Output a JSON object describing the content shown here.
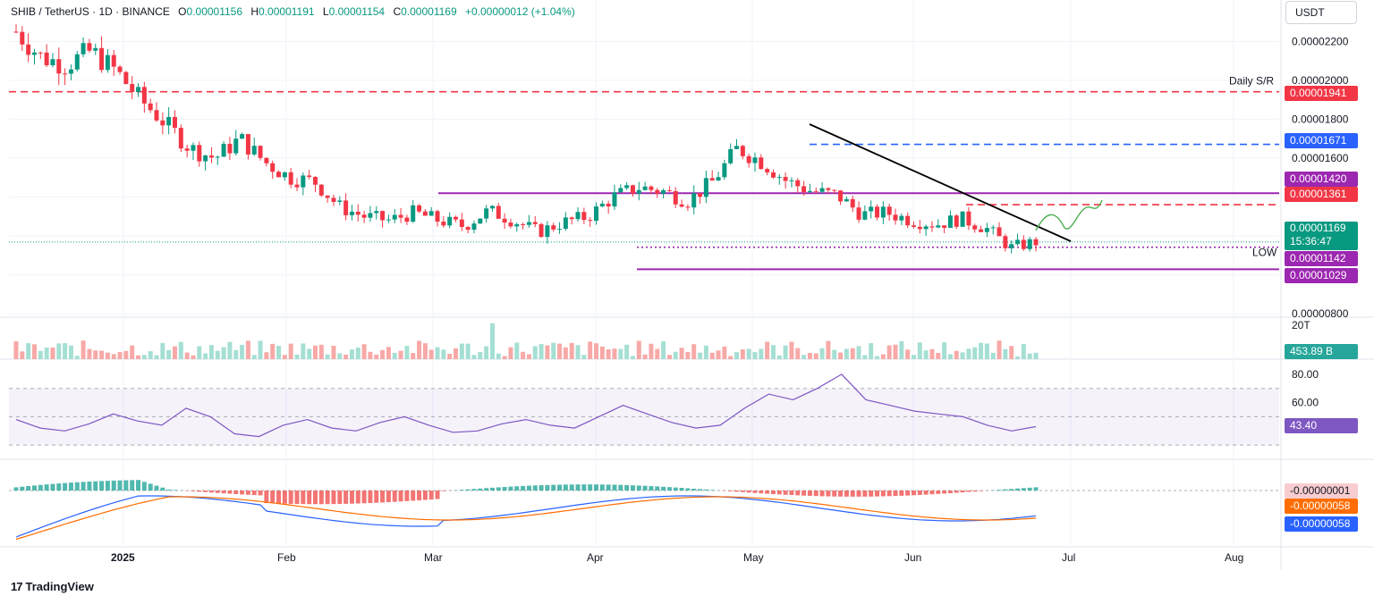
{
  "header": {
    "symbol": "SHIB / TetherUS · 1D · BINANCE",
    "open_label": "O",
    "open": "0.00001156",
    "high_label": "H",
    "high": "0.00001191",
    "low_label": "L",
    "low": "0.00001154",
    "close_label": "C",
    "close": "0.00001169",
    "change": "+0.00000012 (+1.04%)"
  },
  "currency": "USDT",
  "branding": "TradingView",
  "colors": {
    "up": "#089981",
    "down": "#f23645",
    "purple": "#9c27b0",
    "blue": "#2962ff",
    "orange": "#ff6d00",
    "rsi": "#7e57c2",
    "green_path": "#4caf50"
  },
  "annotations": {
    "daily_sr": "Daily S/R",
    "low": "LOW"
  },
  "price_tags": [
    {
      "text": "0.00001941",
      "color": "#f23645"
    },
    {
      "text": "0.00001671",
      "color": "#2962ff"
    },
    {
      "text": "0.00001420",
      "color": "#9c27b0"
    },
    {
      "text": "0.00001361",
      "color": "#f23645"
    },
    {
      "text": "0.00001169",
      "sub": "15:36:47",
      "color": "#089981"
    },
    {
      "text": "0.00001142",
      "color": "#9c27b0"
    },
    {
      "text": "0.00001029",
      "color": "#9c27b0"
    }
  ],
  "volume_tag": {
    "text": "453.89 B",
    "color": "#26a69a"
  },
  "rsi_tag": {
    "text": "43.40",
    "color": "#7e57c2"
  },
  "macd_tags": [
    {
      "text": "-0.00000001",
      "color": "#f8cdd0",
      "fg": "#131722"
    },
    {
      "text": "-0.00000058",
      "color": "#ff6d00",
      "fg": "#ffffff"
    },
    {
      "text": "-0.00000058",
      "color": "#2962ff",
      "fg": "#ffffff"
    }
  ],
  "chart_data": [
    {
      "type": "candlestick",
      "title": "SHIB / TetherUS · 1D · BINANCE",
      "y_ticks": [
        "0.00002200",
        "0.00002000",
        "0.00001800",
        "0.00001600",
        "0.00001400",
        "0.00001200",
        "0.00000800"
      ],
      "x_ticks": [
        "2025",
        "Feb",
        "Mar",
        "Apr",
        "May",
        "Jun",
        "Jul",
        "Aug"
      ],
      "levels": [
        {
          "name": "Daily S/R",
          "value": 1.941e-05,
          "style": "dashed",
          "color": "#f23645"
        },
        {
          "value": 1.671e-05,
          "style": "dashed",
          "color": "#2962ff"
        },
        {
          "value": 1.42e-05,
          "style": "solid",
          "color": "#9c27b0"
        },
        {
          "value": 1.361e-05,
          "style": "dashed",
          "color": "#f23645"
        },
        {
          "name": "LOW",
          "value": 1.142e-05,
          "style": "dotted",
          "color": "#9c27b0"
        },
        {
          "value": 1.029e-05,
          "style": "solid",
          "color": "#9c27b0"
        }
      ],
      "last_close": 1.169e-05,
      "close_series": [
        2.25e-05,
        2.12e-05,
        2.08e-05,
        2.15e-05,
        2.05e-05,
        1.9e-05,
        1.78e-05,
        1.65e-05,
        1.6e-05,
        1.7e-05,
        1.58e-05,
        1.5e-05,
        1.48e-05,
        1.35e-05,
        1.3e-05,
        1.28e-05,
        1.32e-05,
        1.28e-05,
        1.25e-05,
        1.33e-05,
        1.28e-05,
        1.22e-05,
        1.27e-05,
        1.3e-05,
        1.4e-05,
        1.45e-05,
        1.43e-05,
        1.38e-05,
        1.48e-05,
        1.65e-05,
        1.58e-05,
        1.48e-05,
        1.43e-05,
        1.41e-05,
        1.31e-05,
        1.32e-05,
        1.28e-05,
        1.26e-05,
        1.29e-05,
        1.24e-05,
        1.14e-05,
        1.17e-05
      ]
    },
    {
      "type": "bar",
      "title": "Volume",
      "y_ticks": [
        "20T"
      ],
      "last_value": "453.89 B"
    },
    {
      "type": "line",
      "title": "RSI",
      "y_ticks": [
        "80.00",
        "60.00"
      ],
      "bands": [
        30,
        50,
        70
      ],
      "last_value": 43.4,
      "values": [
        48,
        42,
        40,
        45,
        52,
        47,
        44,
        56,
        50,
        38,
        36,
        44,
        48,
        42,
        40,
        46,
        50,
        44,
        39,
        40,
        45,
        48,
        44,
        42,
        50,
        58,
        52,
        46,
        42,
        44,
        56,
        66,
        62,
        70,
        80,
        62,
        58,
        54,
        52,
        50,
        44,
        40,
        43
      ]
    },
    {
      "type": "line",
      "title": "MACD",
      "last_values": {
        "histogram": "-0.00000001",
        "signal": "-0.00000058",
        "macd": "-0.00000058"
      }
    }
  ]
}
